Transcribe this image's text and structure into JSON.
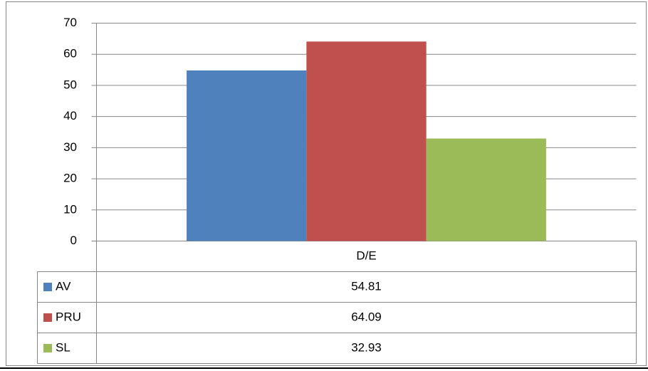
{
  "chart_data": {
    "type": "bar",
    "categories": [
      "D/E"
    ],
    "series": [
      {
        "name": "AV",
        "color": "#4f81bd",
        "values": [
          54.81
        ]
      },
      {
        "name": "PRU",
        "color": "#c0504d",
        "values": [
          64.09
        ]
      },
      {
        "name": "SL",
        "color": "#9bbb59",
        "values": [
          32.93
        ]
      }
    ],
    "ylim": [
      0,
      70
    ],
    "yticks": [
      0,
      10,
      20,
      30,
      40,
      50,
      60,
      70
    ],
    "grid": true,
    "data_table": true
  }
}
